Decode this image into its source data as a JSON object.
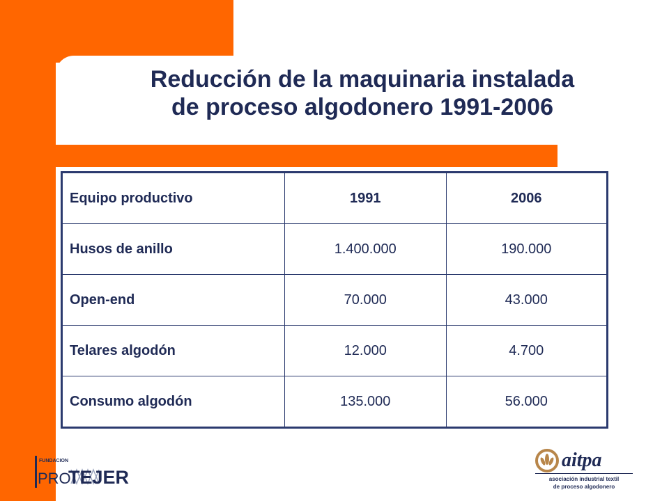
{
  "slide": {
    "title_line1": "Reducción de la maquinaria instalada",
    "title_line2": "de proceso algodonero 1991-2006"
  },
  "table": {
    "headers": [
      "Equipo productivo",
      "1991",
      "2006"
    ],
    "rows": [
      [
        "Husos de anillo",
        "1.400.000",
        "190.000"
      ],
      [
        "Open-end",
        "70.000",
        "43.000"
      ],
      [
        "Telares algodón",
        "12.000",
        "4.700"
      ],
      [
        "Consumo algodón",
        "135.000",
        "56.000"
      ]
    ]
  },
  "logos": {
    "left": {
      "small": "FUNDACION",
      "pro": "PRO",
      "name": "TEJER"
    },
    "right": {
      "name": "aitpa",
      "tagline1": "asociación industrial textil",
      "tagline2": "de proceso algodonero"
    }
  },
  "colors": {
    "accent_orange": "#FF6600",
    "text_navy": "#1F2A55",
    "border_navy": "#2B3A6E",
    "logo_tan": "#B8864A"
  }
}
